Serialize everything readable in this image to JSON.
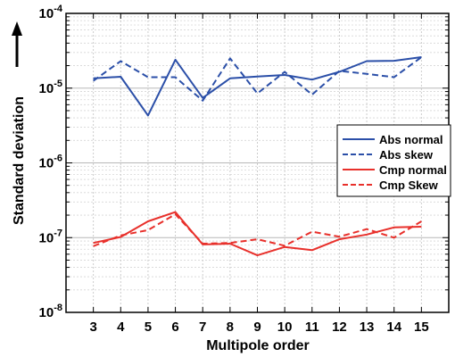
{
  "chart_data": {
    "type": "line",
    "title": "",
    "xlabel": "Multipole order",
    "ylabel": "Standard deviation",
    "y_scale": "log",
    "ylim": [
      1e-08,
      0.0001
    ],
    "xlim": [
      2,
      16
    ],
    "x": [
      3,
      4,
      5,
      6,
      7,
      8,
      9,
      10,
      11,
      12,
      13,
      14,
      15
    ],
    "x_tick_labels": [
      "3",
      "4",
      "5",
      "6",
      "7",
      "8",
      "9",
      "10",
      "11",
      "12",
      "13",
      "14",
      "15"
    ],
    "y_ticks": [
      {
        "value": 1e-08,
        "base": "10",
        "exp": "-8"
      },
      {
        "value": 1e-07,
        "base": "10",
        "exp": "-7"
      },
      {
        "value": 1e-06,
        "base": "10",
        "exp": "-6"
      },
      {
        "value": 1e-05,
        "base": "10",
        "exp": "-5"
      },
      {
        "value": 0.0001,
        "base": "10",
        "exp": "-4"
      }
    ],
    "grid": true,
    "legend_position": "right",
    "series": [
      {
        "name": "Abs normal",
        "color": "#2b4fa8",
        "dash": "solid",
        "values": [
          1.35e-05,
          1.42e-05,
          4.3e-06,
          2.4e-05,
          7.4e-06,
          1.35e-05,
          1.43e-05,
          1.5e-05,
          1.3e-05,
          1.65e-05,
          2.3e-05,
          2.32e-05,
          2.6e-05
        ]
      },
      {
        "name": "Abs skew",
        "color": "#2b4fa8",
        "dash": "dashed",
        "values": [
          1.25e-05,
          2.3e-05,
          1.4e-05,
          1.4e-05,
          6.8e-06,
          2.5e-05,
          8.5e-06,
          1.65e-05,
          8.2e-06,
          1.7e-05,
          1.55e-05,
          1.4e-05,
          2.6e-05
        ]
      },
      {
        "name": "Cmp normal",
        "color": "#e8302b",
        "dash": "solid",
        "values": [
          8.5e-08,
          1.02e-07,
          1.65e-07,
          2.2e-07,
          8.1e-08,
          8.3e-08,
          5.8e-08,
          7.5e-08,
          6.8e-08,
          9.5e-08,
          1.1e-07,
          1.37e-07,
          1.4e-07
        ]
      },
      {
        "name": "Cmp Skew",
        "color": "#e8302b",
        "dash": "dashed",
        "values": [
          7.7e-08,
          1.07e-07,
          1.26e-07,
          2.05e-07,
          8.3e-08,
          8.5e-08,
          9.5e-08,
          7.8e-08,
          1.2e-07,
          1.03e-07,
          1.3e-07,
          1e-07,
          1.65e-07
        ]
      }
    ]
  }
}
